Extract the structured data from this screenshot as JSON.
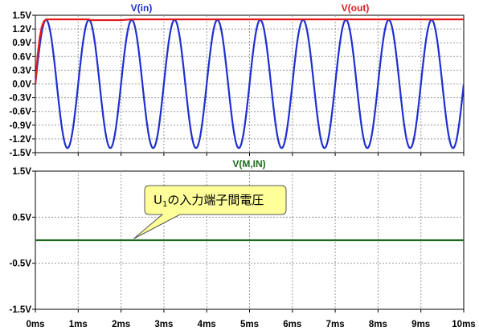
{
  "chart_data": [
    {
      "type": "line",
      "panel": "top",
      "xlim": [
        0,
        10
      ],
      "ylim": [
        -1.5,
        1.5
      ],
      "grid": true,
      "y_ticks": [
        {
          "v": 1.5,
          "label": "1.5V"
        },
        {
          "v": 1.2,
          "label": "1.2V"
        },
        {
          "v": 0.9,
          "label": "0.9V"
        },
        {
          "v": 0.6,
          "label": "0.6V"
        },
        {
          "v": 0.3,
          "label": "0.3V"
        },
        {
          "v": 0.0,
          "label": "0.0V"
        },
        {
          "v": -0.3,
          "label": "-0.3V"
        },
        {
          "v": -0.6,
          "label": "-0.6V"
        },
        {
          "v": -0.9,
          "label": "-0.9V"
        },
        {
          "v": -1.2,
          "label": "-1.2V"
        },
        {
          "v": -1.5,
          "label": "-1.5V"
        }
      ],
      "series": [
        {
          "name": "V(in)",
          "color": "#1f2fd0",
          "waveform": "sine",
          "amplitude": 1.4,
          "frequency_khz": 1.0,
          "x_ms": [
            0,
            0.25,
            0.5,
            0.75,
            1,
            1.25,
            1.5,
            1.75,
            2,
            2.25,
            2.5,
            2.75,
            3,
            3.25,
            3.5,
            3.75,
            4,
            4.25,
            4.5,
            4.75,
            5,
            5.25,
            5.5,
            5.75,
            6,
            6.25,
            6.5,
            6.75,
            7,
            7.25,
            7.5,
            7.75,
            8,
            8.25,
            8.5,
            8.75,
            9,
            9.25,
            9.5,
            9.75,
            10
          ],
          "y_v": [
            0,
            1.4,
            0,
            -1.4,
            0,
            1.4,
            0,
            -1.4,
            0,
            1.4,
            0,
            -1.4,
            0,
            1.4,
            0,
            -1.4,
            0,
            1.4,
            0,
            -1.4,
            0,
            1.4,
            0,
            -1.4,
            0,
            1.4,
            0,
            -1.4,
            0,
            1.4,
            0,
            -1.4,
            0,
            1.4,
            0,
            -1.4,
            0,
            1.4,
            0,
            -1.4,
            0
          ]
        },
        {
          "name": "V(out)",
          "color": "#e21b1b",
          "x_ms": [
            0,
            0.05,
            0.1,
            0.15,
            0.2,
            0.25,
            1.25,
            1.3,
            2.0,
            2.25,
            10
          ],
          "y_v": [
            0,
            0.6,
            1.0,
            1.25,
            1.37,
            1.41,
            1.41,
            1.395,
            1.395,
            1.41,
            1.41
          ]
        }
      ]
    },
    {
      "type": "line",
      "panel": "bottom",
      "xlim": [
        0,
        10
      ],
      "ylim": [
        -1.5,
        1.5
      ],
      "grid": true,
      "y_ticks": [
        {
          "v": 1.5,
          "label": "1.5V"
        },
        {
          "v": 0.5,
          "label": "0.5V"
        },
        {
          "v": -0.5,
          "label": "-0.5V"
        },
        {
          "v": -1.5,
          "label": "-1.5V"
        }
      ],
      "x_ticks": [
        {
          "v": 0,
          "label": "0ms"
        },
        {
          "v": 1,
          "label": "1ms"
        },
        {
          "v": 2,
          "label": "2ms"
        },
        {
          "v": 3,
          "label": "3ms"
        },
        {
          "v": 4,
          "label": "4ms"
        },
        {
          "v": 5,
          "label": "5ms"
        },
        {
          "v": 6,
          "label": "6ms"
        },
        {
          "v": 7,
          "label": "7ms"
        },
        {
          "v": 8,
          "label": "8ms"
        },
        {
          "v": 9,
          "label": "9ms"
        },
        {
          "v": 10,
          "label": "10ms"
        }
      ],
      "series": [
        {
          "name": "V(M,IN)",
          "color": "#1c6b1c",
          "x_ms": [
            0,
            10
          ],
          "y_v": [
            0,
            0
          ]
        }
      ],
      "annotation": {
        "text_main": "U",
        "text_sub": "1",
        "text_rest": "の入力端子間電圧",
        "fill": "#ffff99",
        "pointer_to": {
          "x_ms": 2.3,
          "y_v": 0
        }
      }
    }
  ]
}
